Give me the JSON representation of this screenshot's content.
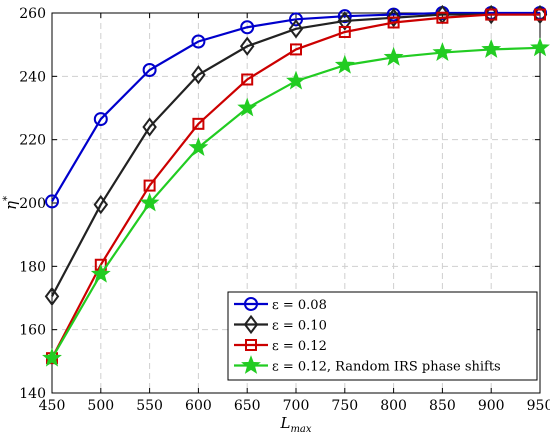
{
  "chart_data": {
    "type": "line",
    "title": "",
    "xlabel": "L",
    "xlabel_sub": "max",
    "ylabel": "η",
    "ylabel_sup": "*",
    "xlim": [
      450,
      950
    ],
    "ylim": [
      140,
      260
    ],
    "x_ticks": [
      450,
      500,
      550,
      600,
      650,
      700,
      750,
      800,
      850,
      900,
      950
    ],
    "y_ticks": [
      140,
      160,
      180,
      200,
      220,
      240,
      260
    ],
    "grid": true,
    "legend_position": "bottom-right",
    "x": [
      450,
      500,
      550,
      600,
      650,
      700,
      750,
      800,
      850,
      900,
      950
    ],
    "series": [
      {
        "name": "ε = 0.08",
        "color": "#0000cc",
        "marker": "circle",
        "values": [
          200.5,
          226.5,
          242,
          251,
          255.5,
          258,
          259,
          259.5,
          260,
          260,
          260
        ]
      },
      {
        "name": "ε = 0.10",
        "color": "#222222",
        "marker": "diamond",
        "values": [
          170.5,
          199.5,
          224,
          240.5,
          249.5,
          255,
          257.5,
          258.5,
          259.5,
          259.5,
          259.5
        ]
      },
      {
        "name": "ε = 0.12",
        "color": "#cc0000",
        "marker": "square",
        "values": [
          151,
          180.5,
          205.5,
          225,
          239,
          248.5,
          254,
          257,
          258.5,
          259.5,
          259.5
        ]
      },
      {
        "name": "ε = 0.12, Random IRS phase shifts",
        "color": "#22cc22",
        "marker": "star",
        "values": [
          151,
          177.5,
          200,
          217.5,
          230,
          238.5,
          243.5,
          246,
          247.5,
          248.5,
          249
        ]
      }
    ]
  }
}
